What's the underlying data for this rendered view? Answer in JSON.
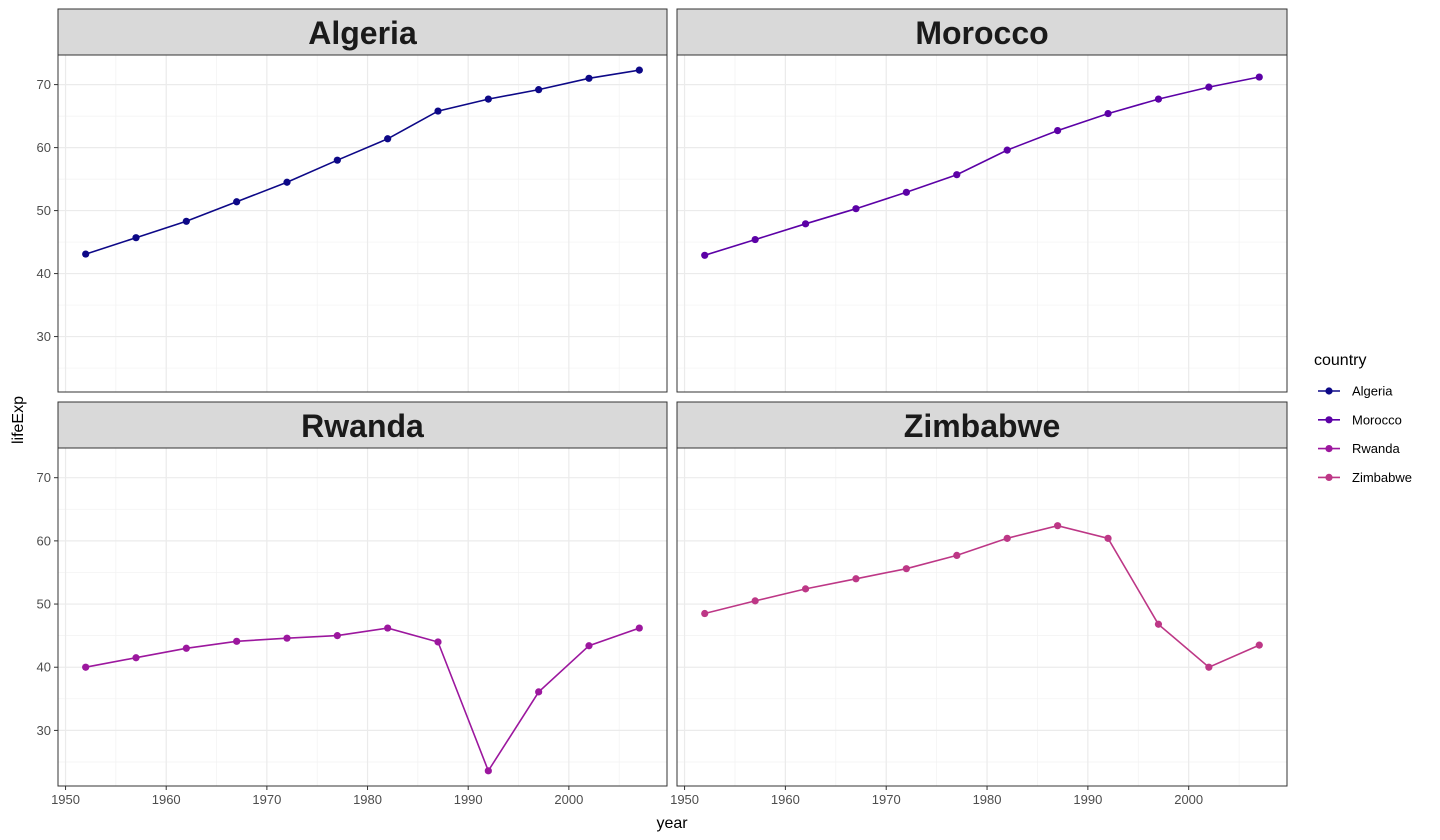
{
  "chart_data": {
    "type": "line",
    "facet_by": "country",
    "xlabel": "year",
    "ylabel": "lifeExp",
    "xlim": [
      1949.25,
      2009.75
    ],
    "ylim": [
      21.2,
      74.7
    ],
    "x_ticks": [
      1950,
      1960,
      1970,
      1980,
      1990,
      2000
    ],
    "y_ticks": [
      30,
      40,
      50,
      60,
      70
    ],
    "grid": true,
    "legend": {
      "title": "country",
      "position": "right"
    },
    "x": [
      1952,
      1957,
      1962,
      1967,
      1972,
      1977,
      1982,
      1987,
      1992,
      1997,
      2002,
      2007
    ],
    "series": [
      {
        "name": "Algeria",
        "color": "#0d0887",
        "values": [
          43.1,
          45.7,
          48.3,
          51.4,
          54.5,
          58.0,
          61.4,
          65.8,
          67.7,
          69.2,
          71.0,
          72.3
        ]
      },
      {
        "name": "Morocco",
        "color": "#5c01a6",
        "values": [
          42.9,
          45.4,
          47.9,
          50.3,
          52.9,
          55.7,
          59.6,
          62.7,
          65.4,
          67.7,
          69.6,
          71.2
        ]
      },
      {
        "name": "Rwanda",
        "color": "#9c179e",
        "values": [
          40.0,
          41.5,
          43.0,
          44.1,
          44.6,
          45.0,
          46.2,
          44.0,
          23.6,
          36.1,
          43.4,
          46.2
        ]
      },
      {
        "name": "Zimbabwe",
        "color": "#bd3786",
        "values": [
          48.5,
          50.5,
          52.4,
          54.0,
          55.6,
          57.7,
          60.4,
          62.4,
          60.4,
          46.8,
          40.0,
          43.5
        ]
      }
    ]
  }
}
